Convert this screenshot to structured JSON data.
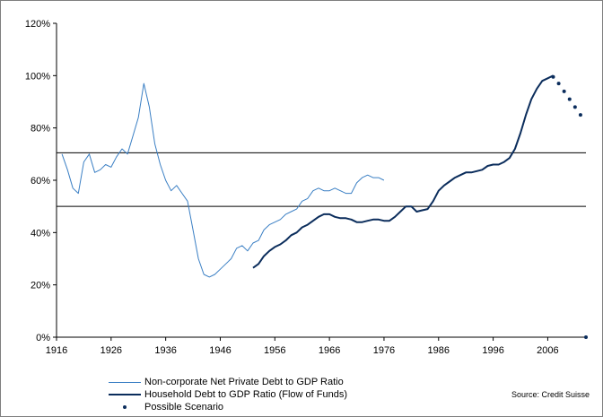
{
  "chart_data": {
    "type": "line",
    "title": "",
    "xlabel": "",
    "ylabel": "",
    "xlim": [
      1916,
      2013
    ],
    "ylim": [
      0,
      120
    ],
    "x_ticks": [
      1916,
      1926,
      1936,
      1946,
      1956,
      1966,
      1976,
      1986,
      1996,
      2006
    ],
    "x_tick_labels": [
      "1916",
      "1926",
      "1936",
      "1946",
      "1956",
      "1966",
      "1976",
      "1986",
      "1996",
      "2006"
    ],
    "y_ticks": [
      0,
      20,
      40,
      60,
      80,
      100,
      120
    ],
    "y_tick_labels": [
      "0%",
      "20%",
      "40%",
      "60%",
      "80%",
      "100%",
      "120%"
    ],
    "reference_lines": [
      70.5,
      50
    ],
    "series": [
      {
        "name": "Non-corporate Net Private Debt to GDP Ratio",
        "color": "#3a7fc4",
        "style": "thin",
        "x": [
          1917,
          1918,
          1919,
          1920,
          1921,
          1922,
          1923,
          1924,
          1925,
          1926,
          1927,
          1928,
          1929,
          1930,
          1931,
          1932,
          1933,
          1934,
          1935,
          1936,
          1937,
          1938,
          1939,
          1940,
          1941,
          1942,
          1943,
          1944,
          1945,
          1946,
          1947,
          1948,
          1949,
          1950,
          1951,
          1952,
          1953,
          1954,
          1955,
          1956,
          1957,
          1958,
          1959,
          1960,
          1961,
          1962,
          1963,
          1964,
          1965,
          1966,
          1967,
          1968,
          1969,
          1970,
          1971,
          1972,
          1973,
          1974,
          1975,
          1976
        ],
        "y": [
          70,
          64,
          57,
          55,
          67,
          70,
          63,
          64,
          66,
          65,
          69,
          72,
          70,
          77,
          84,
          97,
          88,
          74,
          66,
          60,
          56,
          58,
          55,
          52,
          41,
          30,
          24,
          23,
          24,
          26,
          28,
          30,
          34,
          35,
          33,
          36,
          37,
          41,
          43,
          44,
          45,
          47,
          48,
          49,
          52,
          53,
          56,
          57,
          56,
          56,
          57,
          56,
          55,
          55,
          59,
          61,
          62,
          61,
          61,
          60
        ]
      },
      {
        "name": "Household Debt to GDP Ratio (Flow of Funds)",
        "color": "#0b2d5c",
        "style": "thick",
        "x": [
          1952,
          1953,
          1954,
          1955,
          1956,
          1957,
          1958,
          1959,
          1960,
          1961,
          1962,
          1963,
          1964,
          1965,
          1966,
          1967,
          1968,
          1969,
          1970,
          1971,
          1972,
          1973,
          1974,
          1975,
          1976,
          1977,
          1978,
          1979,
          1980,
          1981,
          1982,
          1983,
          1984,
          1985,
          1986,
          1987,
          1988,
          1989,
          1990,
          1991,
          1992,
          1993,
          1994,
          1995,
          1996,
          1997,
          1998,
          1999,
          2000,
          2001,
          2002,
          2003,
          2004,
          2005,
          2006,
          2007
        ],
        "y": [
          26.5,
          28,
          31,
          33,
          34.5,
          35.5,
          37,
          39,
          40,
          42,
          43,
          44.5,
          46,
          47,
          47,
          46,
          45.5,
          45.5,
          45,
          44,
          44,
          44.5,
          45,
          45,
          44.5,
          44.5,
          46,
          48,
          50,
          50,
          48,
          48.5,
          49,
          52,
          56,
          58,
          59.5,
          61,
          62,
          63,
          63,
          63.5,
          64,
          65.5,
          66,
          66,
          67,
          68.5,
          72,
          78,
          85,
          91,
          95,
          98,
          99,
          100
        ]
      },
      {
        "name": "Possible Scenario",
        "color": "#0b2d5c",
        "style": "dots",
        "x": [
          2007,
          2008,
          2009,
          2010,
          2011,
          2012
        ],
        "y": [
          99.5,
          97,
          94,
          91,
          88,
          85
        ]
      }
    ],
    "extra_marker": {
      "x": 2013,
      "y": 0
    },
    "legend_placement": "bottom-left"
  },
  "source_note": "Source: Credit Suisse"
}
